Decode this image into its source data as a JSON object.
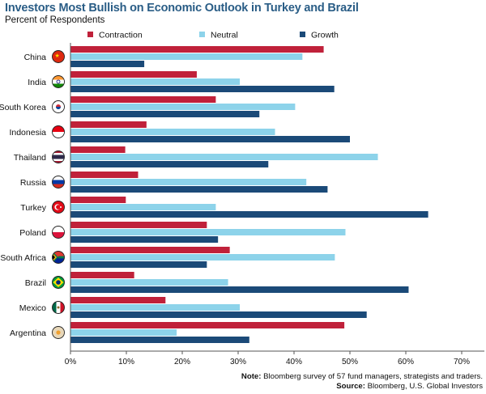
{
  "title": "Investors Most Bullish on Economic Outlook in Turkey and Brazil",
  "subtitle": "Percent of Respondents",
  "colors": {
    "contraction": "#c0213a",
    "neutral": "#8dd3ea",
    "growth": "#1b4a78",
    "axis": "#555555"
  },
  "note": {
    "label": "Note:",
    "text": " Bloomberg survey of 57 fund managers, strategists and traders."
  },
  "source": {
    "label": "Source:",
    "text": " Bloomberg, U.S. Global Investors"
  },
  "chart_data": {
    "type": "bar",
    "orientation": "horizontal",
    "categories": [
      "China",
      "India",
      "South Korea",
      "Indonesia",
      "Thailand",
      "Russia",
      "Turkey",
      "Poland",
      "South Africa",
      "Brazil",
      "Mexico",
      "Argentina"
    ],
    "category_icons": [
      "china-flag",
      "india-flag",
      "south-korea-flag",
      "indonesia-flag",
      "thailand-flag",
      "russia-flag",
      "turkey-flag",
      "poland-flag",
      "south-africa-flag",
      "brazil-flag",
      "mexico-flag",
      "argentina-flag"
    ],
    "series": [
      {
        "name": "Contraction",
        "values": [
          45.3,
          22.6,
          26.0,
          13.6,
          9.8,
          12.1,
          9.9,
          24.4,
          28.5,
          11.4,
          17.0,
          49.0
        ]
      },
      {
        "name": "Neutral",
        "values": [
          41.5,
          30.3,
          40.2,
          36.6,
          55.0,
          42.2,
          26.0,
          49.2,
          47.3,
          28.2,
          30.3,
          19.0
        ]
      },
      {
        "name": "Growth",
        "values": [
          13.2,
          47.2,
          33.8,
          50.0,
          35.4,
          46.0,
          64.0,
          26.4,
          24.4,
          60.5,
          53.0,
          32.0
        ]
      }
    ],
    "xlim": [
      0,
      70
    ],
    "xticks": [
      "0%",
      "10%",
      "20%",
      "30%",
      "40%",
      "50%",
      "60%",
      "70%"
    ],
    "legend_position": "top",
    "grid": false
  }
}
